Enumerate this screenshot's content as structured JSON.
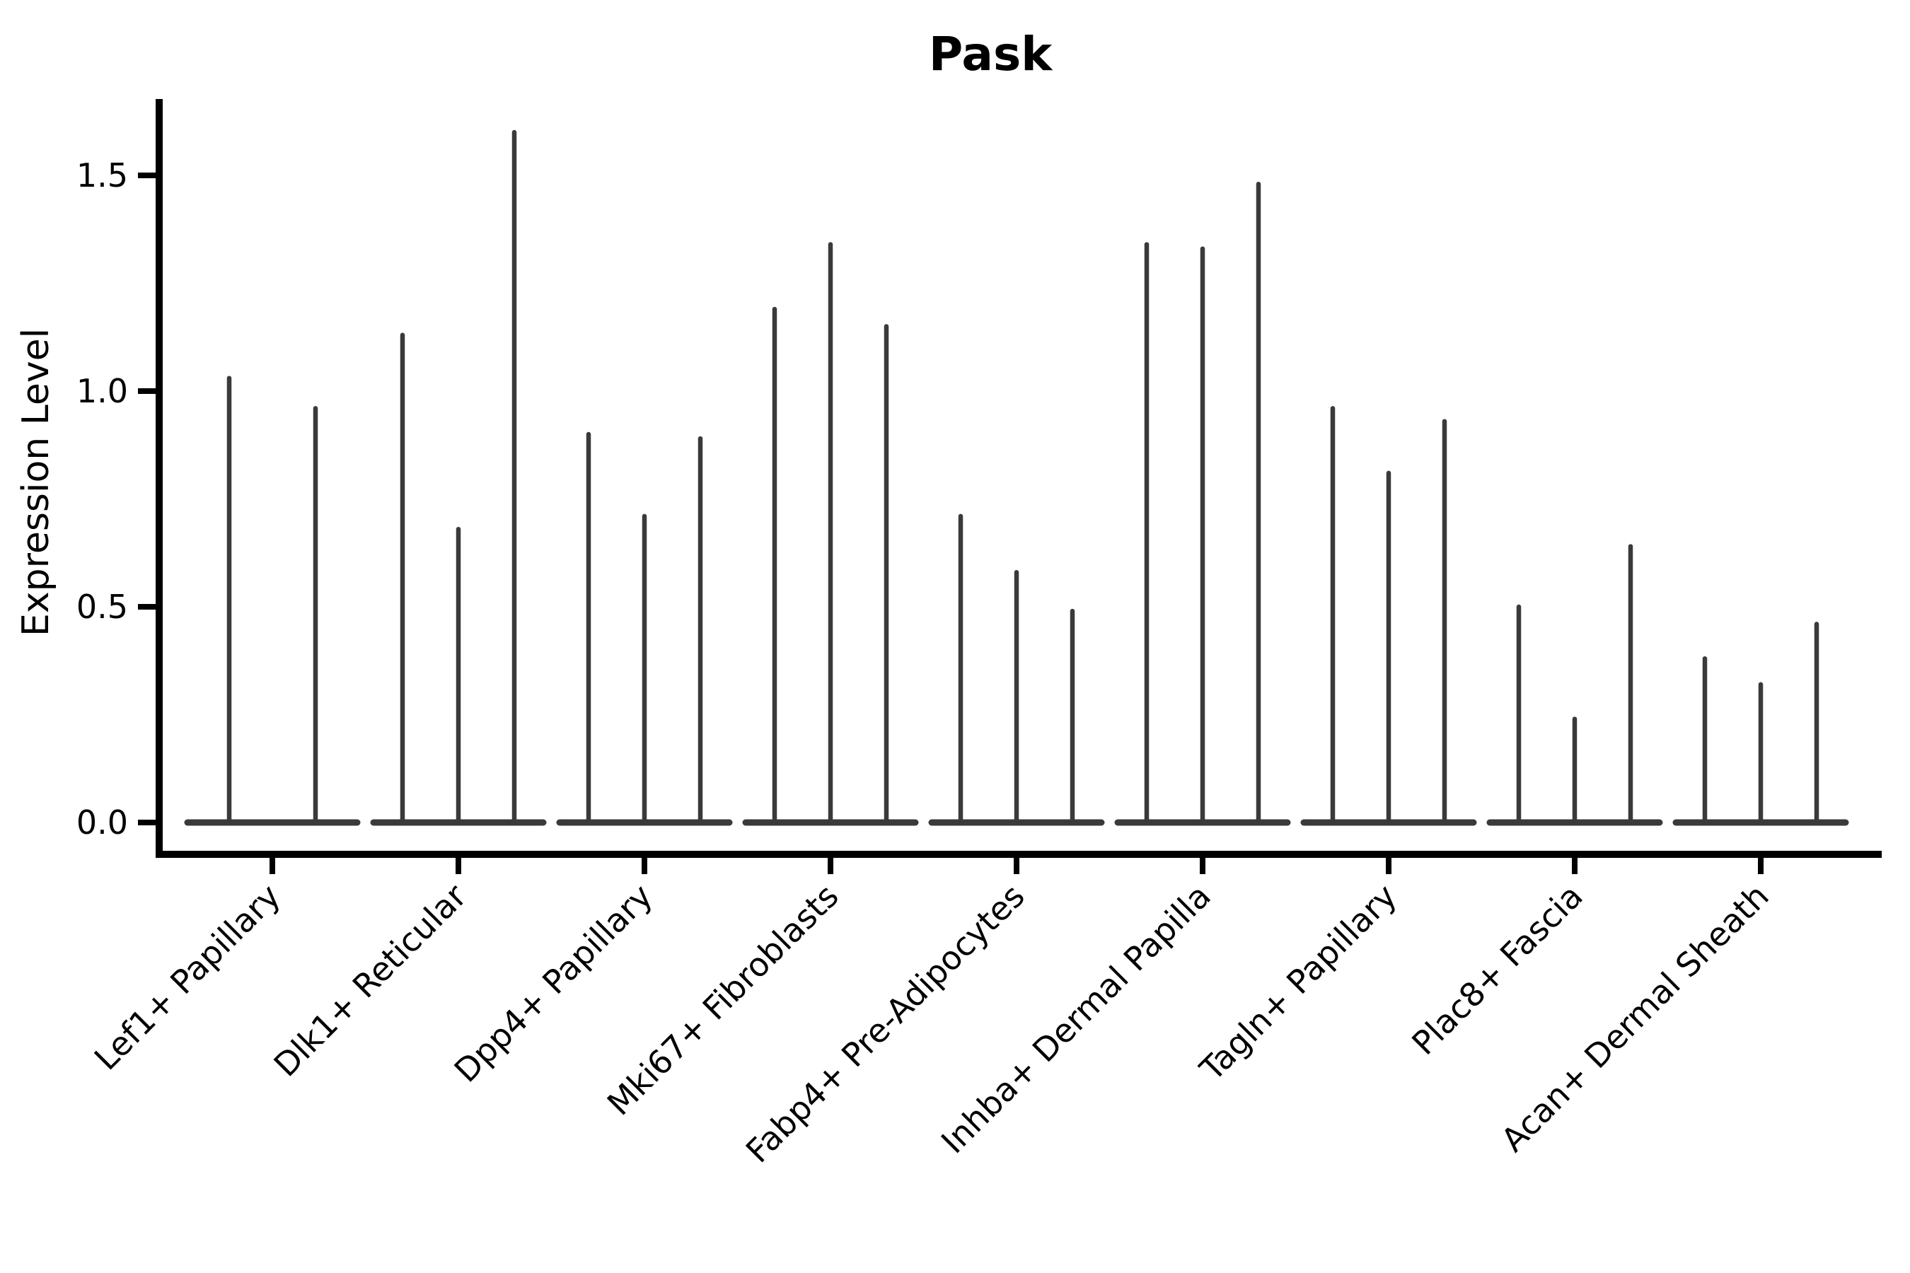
{
  "chart_data": {
    "type": "violin",
    "title": "Pask",
    "xlabel": "",
    "ylabel": "Expression Level",
    "ytick_labels": [
      "0.0",
      "0.5",
      "1.0",
      "1.5"
    ],
    "ytick_values": [
      0.0,
      0.5,
      1.0,
      1.5
    ],
    "ylim": [
      -0.074,
      1.677
    ],
    "grid": false,
    "legend": "none",
    "spines": [
      "left",
      "bottom"
    ],
    "violin_style": "thin spikes with flat base at zero (low-width KDE violins)",
    "violin_color": "#3a3a3a",
    "axis_color": "#000000",
    "categories": [
      "Lef1+ Papillary",
      "Dlk1+ Reticular",
      "Dpp4+ Papillary",
      "Mki67+ Fibroblasts",
      "Fabp4+ Pre-Adipocytes",
      "Inhba+ Dermal Papilla",
      "Tagln+ Papillary",
      "Plac8+ Fascia",
      "Acan+ Dermal Sheath"
    ],
    "groups": [
      {
        "category": "Lef1+ Papillary",
        "violin_maxima": [
          1.03,
          0.96
        ]
      },
      {
        "category": "Dlk1+ Reticular",
        "violin_maxima": [
          1.13,
          0.68,
          1.6
        ]
      },
      {
        "category": "Dpp4+ Papillary",
        "violin_maxima": [
          0.9,
          0.71,
          0.89
        ]
      },
      {
        "category": "Mki67+ Fibroblasts",
        "violin_maxima": [
          1.19,
          1.34,
          1.15
        ]
      },
      {
        "category": "Fabp4+ Pre-Adipocytes",
        "violin_maxima": [
          0.71,
          0.58,
          0.49
        ]
      },
      {
        "category": "Inhba+ Dermal Papilla",
        "violin_maxima": [
          1.34,
          1.33,
          1.48
        ]
      },
      {
        "category": "Tagln+ Papillary",
        "violin_maxima": [
          0.96,
          0.81,
          0.93
        ]
      },
      {
        "category": "Plac8+ Fascia",
        "violin_maxima": [
          0.5,
          0.24,
          0.64
        ]
      },
      {
        "category": "Acan+ Dermal Sheath",
        "violin_maxima": [
          0.38,
          0.32,
          0.46
        ]
      }
    ]
  }
}
